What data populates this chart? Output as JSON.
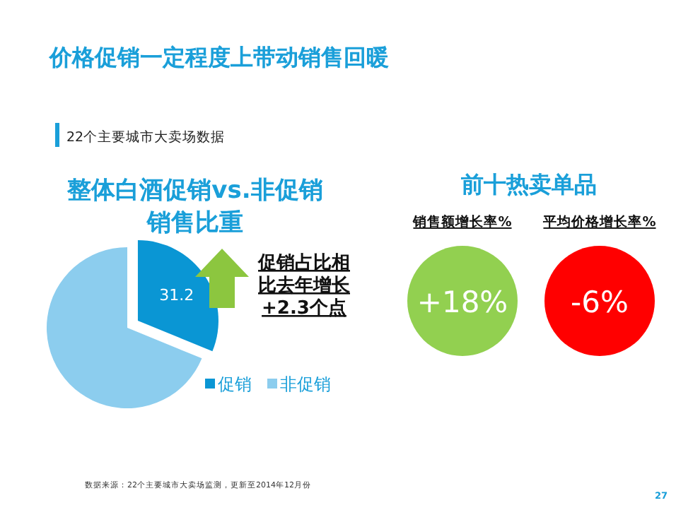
{
  "chart_data": [
    {
      "type": "other",
      "title": "价格促销一定程度上带动销售回暖",
      "subtitle": "22个主要城市大卖场数据",
      "annotations": [
        "数据来源：22个主要城市大卖场监测，更新至2014年12月份",
        "27"
      ]
    },
    {
      "type": "pie",
      "title": "整体白酒促销vs.非促销销售比重",
      "categories": [
        "促销",
        "非促销"
      ],
      "values": [
        31.2,
        68.8
      ],
      "colors": [
        "#0a96d4",
        "#8ccdee"
      ],
      "value_labels": [
        "31.2",
        null
      ],
      "legend": "bottom right",
      "annotations": [
        "促销占比相比去年增长+2.3个点"
      ]
    },
    {
      "type": "other",
      "title": "前十热卖单品",
      "categories": [
        "销售额增长率%",
        "平均价格增长率%"
      ],
      "values": [
        18,
        -6
      ],
      "value_labels": [
        "+18%",
        "-6%"
      ],
      "colors": [
        "#92d050",
        "#ff0000"
      ]
    }
  ]
}
